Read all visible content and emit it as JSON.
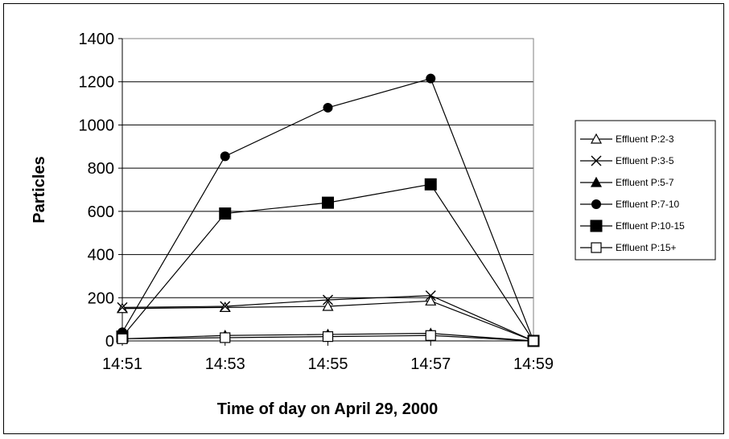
{
  "chart_data": {
    "type": "line",
    "title": "",
    "xlabel": "Time of day on April 29, 2000",
    "ylabel": "Particles",
    "categories": [
      "14:51",
      "14:53",
      "14:55",
      "14:57",
      "14:59"
    ],
    "ylim": [
      0,
      1400
    ],
    "yticks": [
      0,
      200,
      400,
      600,
      800,
      1000,
      1200,
      1400
    ],
    "grid": "horizontal",
    "legend_position": "right",
    "series": [
      {
        "name": "Effluent P:2-3",
        "marker": "open-triangle",
        "values": [
          150,
          155,
          160,
          185,
          0
        ]
      },
      {
        "name": "Effluent P:3-5",
        "marker": "x",
        "values": [
          155,
          160,
          190,
          210,
          0
        ]
      },
      {
        "name": "Effluent P:5-7",
        "marker": "filled-triangle",
        "values": [
          10,
          25,
          30,
          35,
          0
        ]
      },
      {
        "name": "Effluent P:7-10",
        "marker": "filled-circle",
        "values": [
          40,
          855,
          1080,
          1215,
          0
        ]
      },
      {
        "name": "Effluent P:10-15",
        "marker": "filled-square",
        "values": [
          20,
          590,
          640,
          725,
          0
        ]
      },
      {
        "name": "Effluent P:15+",
        "marker": "open-square",
        "values": [
          10,
          15,
          20,
          25,
          0
        ]
      }
    ]
  }
}
